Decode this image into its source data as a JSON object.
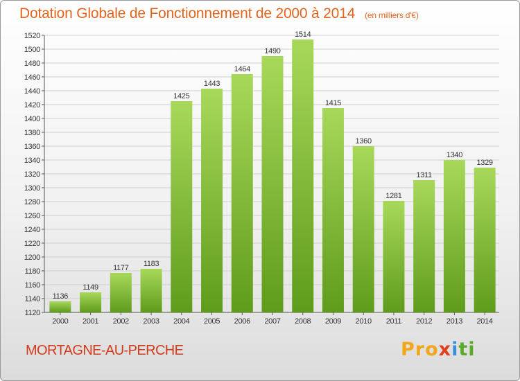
{
  "header": {
    "title": "Dotation Globale de Fonctionnement de 2000 à 2014",
    "subtitle": "(en milliers d'€)"
  },
  "footer": {
    "commune": "MORTAGNE-AU-PERCHE",
    "logo": [
      "Pro",
      "x",
      "i",
      "ti"
    ]
  },
  "colors": {
    "bar_light": "#a8d85a",
    "bar_dark": "#5f9c1c",
    "title": "#e2651d",
    "commune": "#d13c1c"
  },
  "chart_data": {
    "type": "bar",
    "categories": [
      "2000",
      "2001",
      "2002",
      "2003",
      "2004",
      "2005",
      "2006",
      "2007",
      "2008",
      "2009",
      "2010",
      "2011",
      "2012",
      "2013",
      "2014"
    ],
    "values": [
      1136,
      1149,
      1177,
      1183,
      1425,
      1443,
      1464,
      1490,
      1514,
      1415,
      1360,
      1281,
      1311,
      1340,
      1329
    ],
    "title": "Dotation Globale de Fonctionnement de 2000 à 2014",
    "subtitle": "(en milliers d'€)",
    "ylim": [
      1120,
      1520
    ],
    "yticks": [
      1120,
      1140,
      1160,
      1180,
      1200,
      1220,
      1240,
      1260,
      1280,
      1300,
      1320,
      1340,
      1360,
      1380,
      1400,
      1420,
      1440,
      1460,
      1480,
      1500,
      1520
    ],
    "grid": true,
    "data_labels": true
  }
}
